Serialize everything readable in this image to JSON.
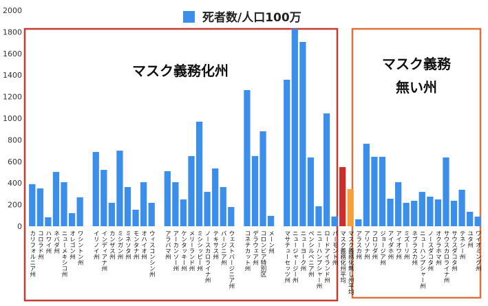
{
  "chart_data": {
    "type": "bar",
    "legend": "死者数/人口100万",
    "annotations": [
      "マスク義務化州",
      "マスク義務",
      "無い州"
    ],
    "color": "#3b8eea",
    "categories": [
      "カリフォルニア州",
      "コロラド州",
      "ハワイ州",
      "ネバダ州",
      "ニューメキシコ州",
      "オレゴン州",
      "ワシントン州",
      null,
      "イリノイ州",
      "インディアナ州",
      "カンザス州",
      "ミシガン州",
      "ミネソタ州",
      "モンタナ州",
      "オハイオ州",
      "ウィスコンシン州",
      null,
      "アラバマ州",
      "アーカンソー州",
      "ケンタッキー州",
      "メリーランド州",
      "ミシシッピー州",
      "ノースカロライナ州",
      "テキサス州",
      "バージニア州",
      "ウェストバージニア州",
      null,
      "コネチカット州",
      "デラウェア州",
      "コロンビア特別区",
      "メーン州",
      null,
      "マサチューセッツ州",
      "ニュージャージー州",
      "ニューヨーク州",
      "ペンシルベニア州",
      "ニューハンプシャー州",
      "ロードアイランド州",
      "バーモント州",
      "マスク義務化州平均",
      "マスク義務化無し州平均",
      "アラスカ州",
      "アリゾナ州",
      "フロリダ州",
      "ジョージア州",
      "アイダホ州",
      "アイオワ州",
      "ミズーリ州",
      "ネブラスカ州",
      "ニューハンプシャー州",
      "ノースダコタ州",
      "オクラホマ州",
      "サウスカロライナ州",
      "サウスダコタ州",
      "テネシー州",
      "ユタ州",
      "ワイオミング州"
    ],
    "values": [
      390,
      350,
      83,
      503,
      408,
      121,
      268,
      null,
      688,
      522,
      217,
      700,
      363,
      153,
      408,
      217,
      null,
      510,
      408,
      248,
      650,
      968,
      318,
      535,
      363,
      178,
      null,
      1261,
      650,
      879,
      96,
      null,
      1357,
      1828,
      1707,
      637,
      185,
      1045,
      90,
      548,
      344,
      64,
      764,
      643,
      643,
      255,
      408,
      217,
      236,
      318,
      274,
      248,
      637,
      236,
      338,
      134,
      89
    ],
    "colors": [
      "#3b8eea",
      "#3b8eea",
      "#3b8eea",
      "#3b8eea",
      "#3b8eea",
      "#3b8eea",
      "#3b8eea",
      null,
      "#3b8eea",
      "#3b8eea",
      "#3b8eea",
      "#3b8eea",
      "#3b8eea",
      "#3b8eea",
      "#3b8eea",
      "#3b8eea",
      null,
      "#3b8eea",
      "#3b8eea",
      "#3b8eea",
      "#3b8eea",
      "#3b8eea",
      "#3b8eea",
      "#3b8eea",
      "#3b8eea",
      "#3b8eea",
      null,
      "#3b8eea",
      "#3b8eea",
      "#3b8eea",
      "#3b8eea",
      null,
      "#3b8eea",
      "#3b8eea",
      "#3b8eea",
      "#3b8eea",
      "#3b8eea",
      "#3b8eea",
      "#3b8eea",
      "#cc2f2b",
      "#f5a038",
      "#3b8eea",
      "#3b8eea",
      "#3b8eea",
      "#3b8eea",
      "#3b8eea",
      "#3b8eea",
      "#3b8eea",
      "#3b8eea",
      "#3b8eea",
      "#3b8eea",
      "#3b8eea",
      "#3b8eea",
      "#3b8eea",
      "#3b8eea",
      "#3b8eea",
      "#3b8eea"
    ],
    "ylim": [
      0,
      2000
    ],
    "yticks": [
      0,
      200,
      400,
      600,
      800,
      1000,
      1200,
      1400,
      1600,
      1800,
      2000
    ]
  }
}
